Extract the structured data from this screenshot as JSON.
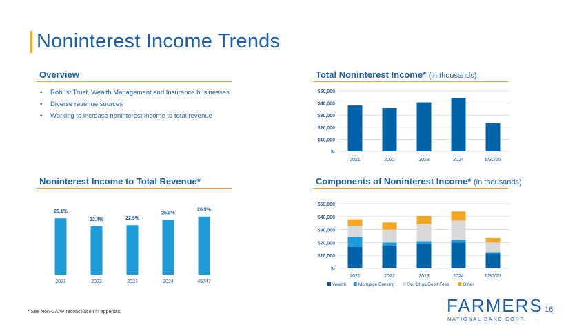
{
  "slide": {
    "title": "Noninterest Income Trends",
    "page_number": "16",
    "footnote": "* See Non-GAAP reconciliation in appendix."
  },
  "overview": {
    "heading": "Overview",
    "bullets": [
      "Robust Trust, Wealth Management and Insurance businesses",
      "Diverse revenue sources",
      "Working to increase noninterest income to total revenue"
    ]
  },
  "total_income": {
    "heading": "Total Noninterest Income*",
    "subheading": "(in thousands)"
  },
  "ratio": {
    "heading": "Noninterest Income to Total Revenue*"
  },
  "components": {
    "heading": "Components of Noninterest Income*",
    "subheading": "(in thousands)"
  },
  "logo": {
    "word": "FARMERS",
    "sub": "NATIONAL BANC CORP."
  },
  "colors": {
    "dark_blue": "#0063a8",
    "bright_blue": "#1e9bd7",
    "light_gray": "#d9d9d9",
    "orange": "#f5a623",
    "title_blue": "#1a5fa8"
  },
  "chart_data": [
    {
      "id": "total",
      "type": "bar",
      "title": "Total Noninterest Income* (in thousands)",
      "categories": [
        "2021",
        "2022",
        "2023",
        "2024",
        "6/30/25"
      ],
      "values": [
        38000,
        35800,
        40600,
        44000,
        23500
      ],
      "ylim": [
        0,
        50000
      ],
      "yticks": [
        0,
        10000,
        20000,
        30000,
        40000,
        50000
      ],
      "ytick_labels": [
        "$-",
        "$10,000",
        "$20,000",
        "$30,000",
        "$40,000",
        "$50,000"
      ],
      "grid": true
    },
    {
      "id": "ratio",
      "type": "bar",
      "title": "Noninterest Income to Total Revenue*",
      "categories": [
        "2021",
        "2022",
        "2023",
        "2024",
        "45747"
      ],
      "values": [
        26.1,
        22.4,
        22.9,
        25.3,
        26.9
      ],
      "value_labels": [
        "26.1%",
        "22.4%",
        "22.9%",
        "25.3%",
        "26.9%"
      ],
      "ylim": [
        0,
        30
      ],
      "grid": false
    },
    {
      "id": "components",
      "type": "bar",
      "stacked": true,
      "title": "Components of Noninterest Income* (in thousands)",
      "categories": [
        "2021",
        "2022",
        "2023",
        "2024",
        "6/30/25"
      ],
      "series": [
        {
          "name": "Wealth",
          "color": "#0063a8",
          "values": [
            16500,
            17500,
            19000,
            20000,
            11500
          ]
        },
        {
          "name": "Mortgage Banking",
          "color": "#1e9bd7",
          "values": [
            8000,
            2500,
            2000,
            2000,
            1000
          ]
        },
        {
          "name": "Svc Chgs/Debit Fees",
          "color": "#d9d9d9",
          "values": [
            8500,
            10000,
            13000,
            15000,
            7500
          ]
        },
        {
          "name": "Other",
          "color": "#f5a623",
          "values": [
            5000,
            5500,
            6500,
            7000,
            3500
          ]
        }
      ],
      "ylim": [
        0,
        50000
      ],
      "yticks": [
        0,
        10000,
        20000,
        30000,
        40000,
        50000
      ],
      "ytick_labels": [
        "$-",
        "$10,000",
        "$20,000",
        "$30,000",
        "$40,000",
        "$50,000"
      ],
      "grid": true,
      "legend": "bottom"
    }
  ]
}
